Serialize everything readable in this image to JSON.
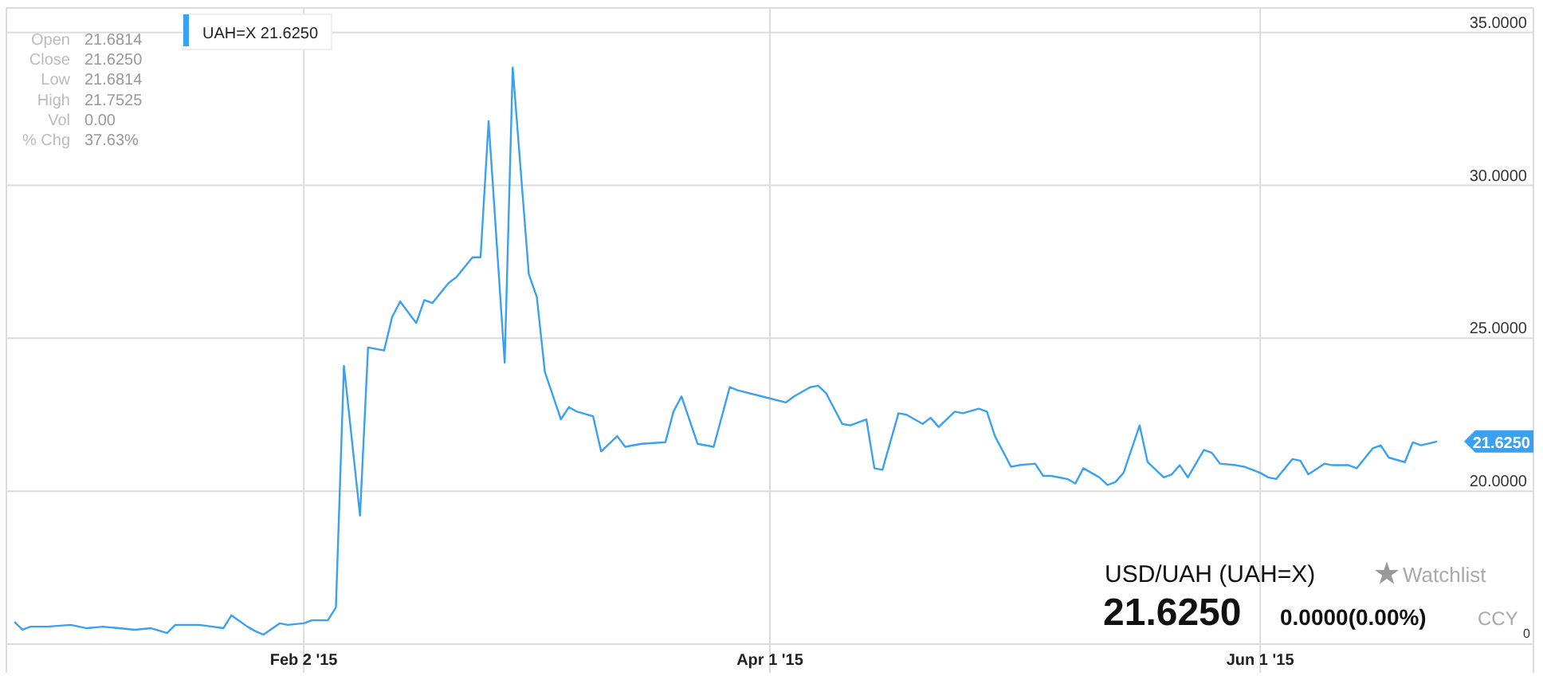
{
  "chart_data": {
    "type": "line",
    "title": "USD/UAH (UAH=X)",
    "x": [
      "2014-12-28",
      "2014-12-29",
      "2014-12-30",
      "2015-01-01",
      "2015-01-04",
      "2015-01-06",
      "2015-01-08",
      "2015-01-10",
      "2015-01-12",
      "2015-01-14",
      "2015-01-16",
      "2015-01-17",
      "2015-01-20",
      "2015-01-23",
      "2015-01-24",
      "2015-01-26",
      "2015-01-27",
      "2015-01-28",
      "2015-01-30",
      "2015-01-31",
      "2015-02-02",
      "2015-02-03",
      "2015-02-05",
      "2015-02-06",
      "2015-02-07",
      "2015-02-09",
      "2015-02-10",
      "2015-02-12",
      "2015-02-13",
      "2015-02-14",
      "2015-02-16",
      "2015-02-17",
      "2015-02-18",
      "2015-02-20",
      "2015-02-21",
      "2015-02-23",
      "2015-02-24",
      "2015-02-25",
      "2015-02-27",
      "2015-02-28",
      "2015-03-02",
      "2015-03-03",
      "2015-03-04",
      "2015-03-06",
      "2015-03-07",
      "2015-03-08",
      "2015-03-10",
      "2015-03-11",
      "2015-03-13",
      "2015-03-14",
      "2015-03-16",
      "2015-03-19",
      "2015-03-20",
      "2015-03-21",
      "2015-03-23",
      "2015-03-25",
      "2015-03-27",
      "2015-03-28",
      "2015-03-31",
      "2015-04-03",
      "2015-04-04",
      "2015-04-06",
      "2015-04-07",
      "2015-04-08",
      "2015-04-10",
      "2015-04-11",
      "2015-04-13",
      "2015-04-14",
      "2015-04-15",
      "2015-04-17",
      "2015-04-18",
      "2015-04-20",
      "2015-04-21",
      "2015-04-22",
      "2015-04-24",
      "2015-04-25",
      "2015-04-27",
      "2015-04-28",
      "2015-04-29",
      "2015-05-01",
      "2015-05-02",
      "2015-05-04",
      "2015-05-05",
      "2015-05-06",
      "2015-05-08",
      "2015-05-09",
      "2015-05-10",
      "2015-05-12",
      "2015-05-13",
      "2015-05-14",
      "2015-05-15",
      "2015-05-17",
      "2015-05-18",
      "2015-05-20",
      "2015-05-21",
      "2015-05-22",
      "2015-05-23",
      "2015-05-25",
      "2015-05-26",
      "2015-05-27",
      "2015-05-29",
      "2015-05-30",
      "2015-06-01",
      "2015-06-02",
      "2015-06-03",
      "2015-06-05",
      "2015-06-06",
      "2015-06-07",
      "2015-06-09",
      "2015-06-10",
      "2015-06-12",
      "2015-06-13",
      "2015-06-15",
      "2015-06-16",
      "2015-06-17",
      "2015-06-19",
      "2015-06-20",
      "2015-06-21",
      "2015-06-23"
    ],
    "series": [
      {
        "name": "UAH=X",
        "color": "#3aa1f0",
        "values": [
          15.73,
          15.47,
          15.57,
          15.57,
          15.63,
          15.52,
          15.57,
          15.52,
          15.47,
          15.52,
          15.36,
          15.63,
          15.63,
          15.52,
          15.94,
          15.57,
          15.42,
          15.31,
          15.68,
          15.63,
          15.68,
          15.78,
          15.78,
          16.2,
          24.1,
          19.2,
          24.7,
          24.6,
          25.7,
          26.2,
          25.5,
          26.25,
          26.15,
          26.8,
          27.0,
          27.65,
          27.65,
          32.1,
          24.2,
          33.85,
          27.1,
          26.35,
          23.9,
          22.35,
          22.75,
          22.6,
          22.45,
          21.3,
          21.8,
          21.45,
          21.55,
          21.6,
          22.6,
          23.1,
          21.55,
          21.45,
          23.4,
          23.3,
          23.1,
          22.9,
          23.1,
          23.4,
          23.45,
          23.2,
          22.2,
          22.15,
          22.35,
          20.75,
          20.7,
          22.55,
          22.5,
          22.2,
          22.4,
          22.1,
          22.6,
          22.55,
          22.7,
          22.6,
          21.8,
          20.8,
          20.85,
          20.9,
          20.5,
          20.5,
          20.4,
          20.25,
          20.75,
          20.45,
          20.2,
          20.3,
          20.6,
          22.15,
          20.95,
          20.45,
          20.55,
          20.85,
          20.45,
          21.35,
          21.25,
          20.9,
          20.85,
          20.8,
          20.6,
          20.45,
          20.4,
          21.05,
          21.0,
          20.55,
          20.9,
          20.85,
          20.85,
          20.75,
          21.4,
          21.5,
          21.1,
          20.95,
          21.6,
          21.5,
          21.625
        ]
      }
    ],
    "xlim": [
      "2014-12-27",
      "2015-07-05"
    ],
    "xticks": [
      {
        "value": "2015-02-02",
        "label": "Feb 2 '15"
      },
      {
        "value": "2015-04-01",
        "label": "Apr 1 '15"
      },
      {
        "value": "2015-06-01",
        "label": "Jun 1 '15"
      }
    ],
    "ylim": [
      15,
      35.8
    ],
    "yticks": [
      {
        "value": 15,
        "label": null
      },
      {
        "value": 20,
        "label": "20.0000"
      },
      {
        "value": 25,
        "label": "25.0000"
      },
      {
        "value": 30,
        "label": "30.0000"
      },
      {
        "value": 35,
        "label": "35.0000"
      }
    ],
    "grid": true,
    "legend": "top left",
    "marker": "none",
    "line_style": "solid",
    "annotations": [
      "Open",
      "21.6814",
      "Close",
      "21.6250",
      "Low",
      "21.6814",
      "High",
      "21.7525",
      "Vol",
      "0.00",
      "% Chg",
      "37.63%",
      "21.6250",
      {
        "text": "21.6250",
        "x": "2015-06-23",
        "y": 21.625
      },
      "21.6250",
      "0.0000(0.00%)",
      "CCY",
      "Watchlist",
      "0"
    ]
  }
}
